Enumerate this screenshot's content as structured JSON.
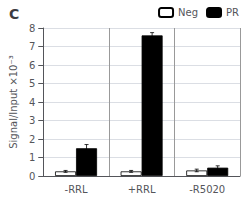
{
  "chart_data": {
    "type": "bar",
    "title": "C",
    "categories": [
      "-RRL",
      "+RRL",
      "-R5020"
    ],
    "series": [
      {
        "name": "Neg",
        "color": "white",
        "values": [
          0.25,
          0.25,
          0.3
        ],
        "errors": [
          0.05,
          0.05,
          0.07
        ]
      },
      {
        "name": "PR",
        "color": "black",
        "values": [
          1.5,
          7.6,
          0.45
        ],
        "errors": [
          0.2,
          0.15,
          0.1
        ]
      }
    ],
    "ylabel": "Signal/Input ×10⁻³",
    "ylim": [
      0,
      8
    ],
    "yticks": [
      0,
      1,
      2,
      3,
      4,
      5,
      6,
      7,
      8
    ],
    "grid": true,
    "legend": "upper right"
  }
}
